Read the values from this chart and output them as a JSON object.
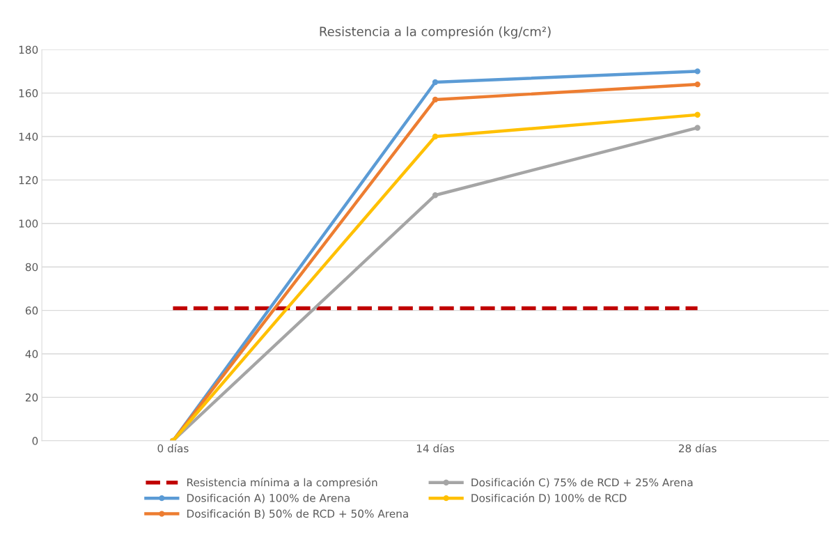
{
  "chart_data": {
    "type": "line",
    "title": "Resistencia a la compresión (kg/cm²)",
    "categories": [
      "0 días",
      "14 días",
      "28 días"
    ],
    "series": [
      {
        "name": "Resistencia mínima a la compresión",
        "color": "#c00000",
        "values": [
          61,
          61,
          61
        ],
        "line_style": "dashed",
        "marker": "none"
      },
      {
        "name": "Dosificación A) 100% de Arena",
        "color": "#5b9bd5",
        "values": [
          0,
          165,
          170
        ],
        "line_style": "solid",
        "marker": "circle"
      },
      {
        "name": "Dosificación B) 50% de RCD + 50% Arena",
        "color": "#ed7d31",
        "values": [
          0,
          157,
          164
        ],
        "line_style": "solid",
        "marker": "circle"
      },
      {
        "name": "Dosificación C) 75% de RCD + 25% Arena",
        "color": "#a5a5a5",
        "values": [
          0,
          113,
          144
        ],
        "line_style": "solid",
        "marker": "circle"
      },
      {
        "name": "Dosificación D) 100% de RCD",
        "color": "#ffc000",
        "values": [
          0,
          140,
          150
        ],
        "line_style": "solid",
        "marker": "circle"
      }
    ],
    "ylim": [
      0,
      180
    ],
    "yticks": [
      0,
      20,
      40,
      60,
      80,
      100,
      120,
      140,
      160,
      180
    ],
    "grid": "y",
    "legend": "bottom"
  }
}
